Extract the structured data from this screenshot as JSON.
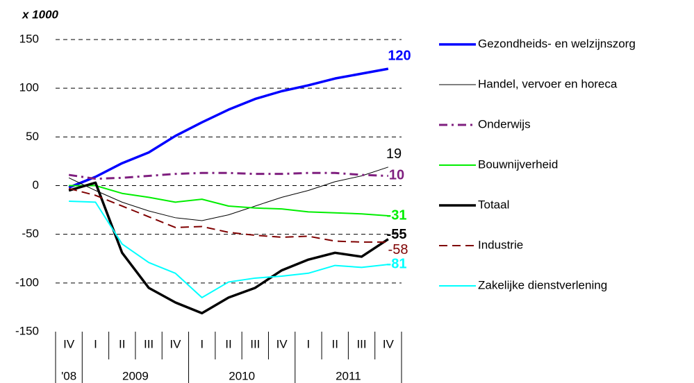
{
  "chart_data": {
    "type": "line",
    "y_axis_label": "x 1000",
    "ylim": [
      -150,
      150
    ],
    "yticks": [
      150,
      100,
      50,
      0,
      -50,
      -100,
      -150
    ],
    "grid": true,
    "legend_position": "right",
    "category_groups": [
      {
        "label": "'08",
        "categories": [
          "IV"
        ]
      },
      {
        "label": "2009",
        "categories": [
          "I",
          "II",
          "III",
          "IV"
        ]
      },
      {
        "label": "2010",
        "categories": [
          "I",
          "II",
          "III",
          "IV"
        ]
      },
      {
        "label": "2011",
        "categories": [
          "I",
          "II",
          "III",
          "IV"
        ]
      }
    ],
    "series": [
      {
        "name": "Gezondheids- en welzijnszorg",
        "color": "#0000ff",
        "line_width": 3.5,
        "dash": "solid",
        "label_bold": true,
        "values": [
          -2,
          9,
          23,
          34,
          51,
          65,
          78,
          89,
          97,
          103,
          110,
          115,
          120
        ]
      },
      {
        "name": "Handel, vervoer en horeca",
        "color": "#000000",
        "line_width": 1,
        "dash": "solid",
        "label_bold": false,
        "values": [
          8,
          -5,
          -17,
          -26,
          -33,
          -36,
          -30,
          -21,
          -12,
          -5,
          4,
          10,
          19
        ]
      },
      {
        "name": "Onderwijs",
        "color": "#7f1f7f",
        "line_width": 3,
        "dash": "dashdot",
        "label_bold": true,
        "values": [
          11,
          7,
          8,
          10,
          12,
          13,
          13,
          12,
          12,
          13,
          13,
          11,
          10
        ]
      },
      {
        "name": "Bouwnijverheid",
        "color": "#00ee00",
        "line_width": 2,
        "dash": "solid",
        "label_bold": true,
        "values": [
          0,
          0,
          -8,
          -12,
          -17,
          -14,
          -21,
          -23,
          -24,
          -27,
          -28,
          -29,
          -31
        ]
      },
      {
        "name": "Totaal",
        "color": "#000000",
        "line_width": 3.5,
        "dash": "solid",
        "label_bold": true,
        "values": [
          -5,
          3,
          -69,
          -105,
          -120,
          -131,
          -115,
          -105,
          -87,
          -76,
          -69,
          -73,
          -55
        ]
      },
      {
        "name": "Industrie",
        "color": "#7f0000",
        "line_width": 2,
        "dash": "dash",
        "label_bold": false,
        "values": [
          -3,
          -10,
          -21,
          -32,
          -43,
          -42,
          -48,
          -51,
          -53,
          -52,
          -57,
          -58,
          -58
        ]
      },
      {
        "name": "Zakelijke dienstverlening",
        "color": "#00ffff",
        "line_width": 2,
        "dash": "solid",
        "label_bold": true,
        "values": [
          -16,
          -17,
          -60,
          -79,
          -90,
          -115,
          -99,
          -95,
          -93,
          -90,
          -82,
          -84,
          -81
        ]
      }
    ]
  }
}
